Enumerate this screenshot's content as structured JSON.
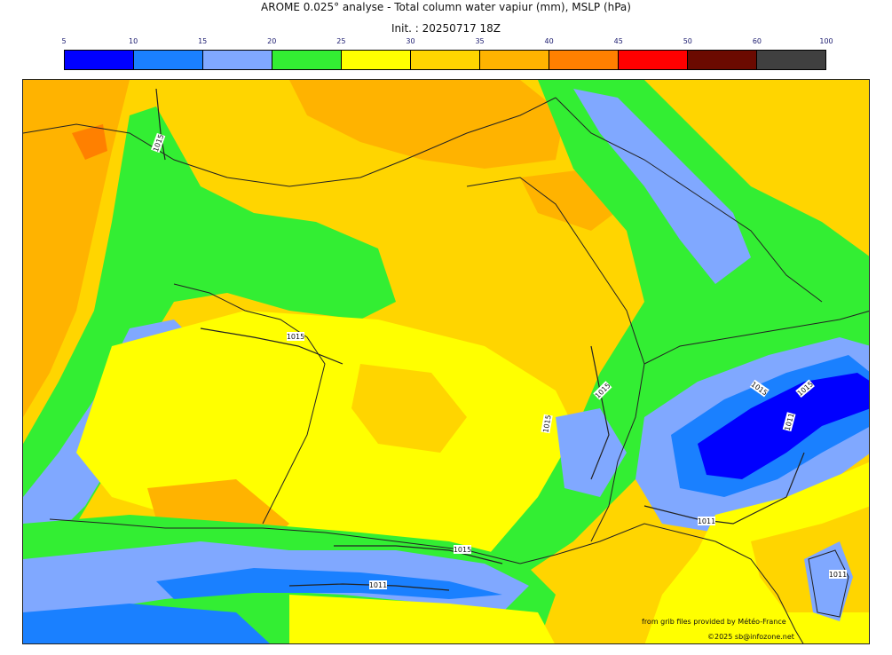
{
  "header": {
    "title": "AROME 0.025° analyse - Total column water vapiur (mm), MSLP (hPa)",
    "init": "Init. : 20250717 18Z"
  },
  "colorbar": {
    "ticks": [
      "5",
      "10",
      "15",
      "20",
      "25",
      "30",
      "35",
      "40",
      "45",
      "50",
      "60",
      "100"
    ],
    "colors": [
      "#0000ff",
      "#1a80ff",
      "#80a8ff",
      "#33ee33",
      "#ffff00",
      "#ffd500",
      "#ffb300",
      "#ff8000",
      "#ff0000",
      "#6b0a00",
      "#404040"
    ]
  },
  "map": {
    "isobar_labels": [
      "1015",
      "1015",
      "1015",
      "1015",
      "1015",
      "1015",
      "1011",
      "1011",
      "1015",
      "1011",
      "1011"
    ]
  },
  "credits": {
    "source": "from grib files provided by Météo-France",
    "copyright": "©2025 sb@infozone.net"
  }
}
